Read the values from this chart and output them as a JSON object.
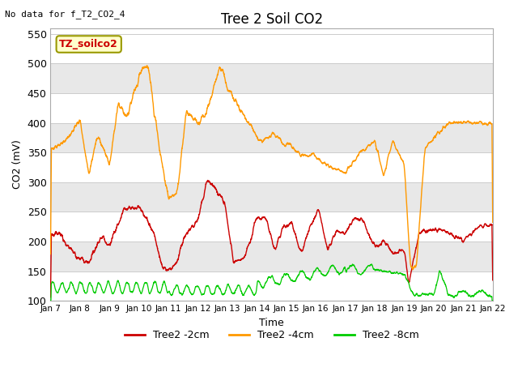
{
  "title": "Tree 2 Soil CO2",
  "top_left_note": "No data for f_T2_CO2_4",
  "legend_box_label": "TZ_soilco2",
  "xlabel": "Time",
  "ylabel": "CO2 (mV)",
  "ylim": [
    100,
    560
  ],
  "yticks": [
    100,
    150,
    200,
    250,
    300,
    350,
    400,
    450,
    500,
    550
  ],
  "xtick_labels": [
    "Jan 7",
    "Jan 8",
    "Jan 9",
    "Jan 10",
    "Jan 11",
    "Jan 12",
    "Jan 13",
    "Jan 14",
    "Jan 15",
    "Jan 16",
    "Jan 17",
    "Jan 18",
    "Jan 19",
    "Jan 20",
    "Jan 21",
    "Jan 22"
  ],
  "line_colors": {
    "2cm": "#cc0000",
    "4cm": "#ff9900",
    "8cm": "#00cc00"
  },
  "legend_labels": [
    "Tree2 -2cm",
    "Tree2 -4cm",
    "Tree2 -8cm"
  ],
  "bg_color": "#ffffff",
  "plot_bg_color": "#ffffff",
  "band_colors": [
    "#ffffff",
    "#e8e8e8"
  ],
  "title_fontsize": 12,
  "axis_fontsize": 9
}
